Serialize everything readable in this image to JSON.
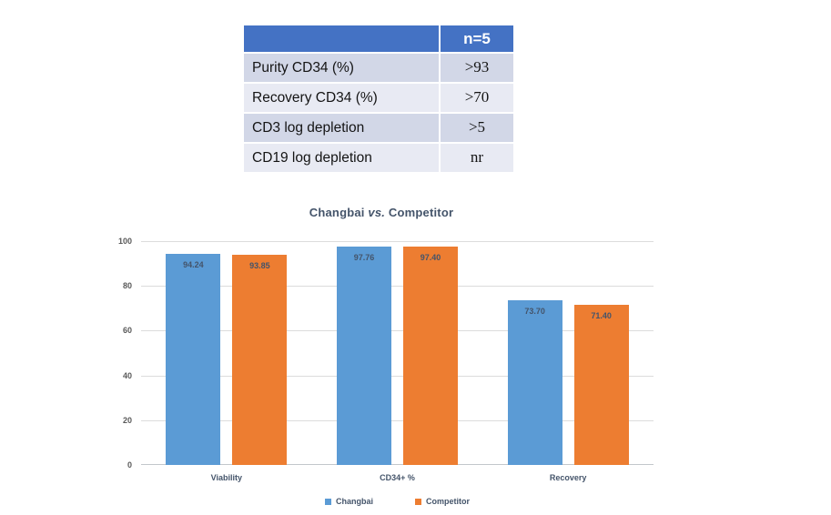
{
  "table": {
    "header": {
      "label": "",
      "value": "n=5"
    },
    "rows": [
      {
        "label": "Purity CD34 (%)",
        "value": ">93"
      },
      {
        "label": "Recovery CD34 (%)",
        "value": ">70"
      },
      {
        "label": "CD3 log depletion",
        "value": ">5"
      },
      {
        "label": "CD19 log depletion",
        "value": "nr"
      }
    ]
  },
  "chart_data": {
    "type": "bar",
    "title": {
      "prefix": "Changbai",
      "vs": "vs.",
      "suffix": "Competitor"
    },
    "categories": [
      "Viability",
      "CD34+ %",
      "Recovery"
    ],
    "series": [
      {
        "name": "Changbai",
        "color": "#5B9BD5",
        "values": [
          94.24,
          97.76,
          73.7
        ]
      },
      {
        "name": "Competitor",
        "color": "#ED7D31",
        "values": [
          93.85,
          97.4,
          71.4
        ]
      }
    ],
    "ylabel": "",
    "xlabel": "",
    "ylim": [
      0,
      100
    ],
    "yticks": [
      0,
      20,
      40,
      60,
      80,
      100
    ],
    "grid": true,
    "legend_position": "bottom",
    "data_label_decimals": 2
  },
  "colors": {
    "header_bg": "#4472C4",
    "row_odd": "#D2D7E7",
    "row_even": "#E8EAF3",
    "grid": "#DCDCDC",
    "axis_text": "#595959",
    "label_text": "#44546A"
  }
}
